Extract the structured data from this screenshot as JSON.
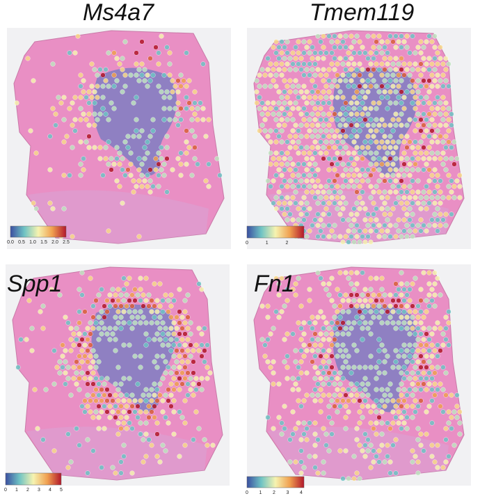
{
  "panels": [
    {
      "title": "Ms4a7",
      "colorbar_ticks": [
        "0.0",
        "0.5",
        "1.0",
        "1.5",
        "2.0",
        "2.5"
      ]
    },
    {
      "title": "Tmem119",
      "colorbar_ticks": [
        "0",
        "1",
        "2"
      ]
    },
    {
      "title": "Spp1",
      "colorbar_ticks": [
        "0",
        "1",
        "2",
        "3",
        "4",
        "5"
      ]
    },
    {
      "title": "Fn1",
      "colorbar_ticks": [
        "0",
        "1",
        "2",
        "3",
        "4"
      ]
    }
  ]
}
